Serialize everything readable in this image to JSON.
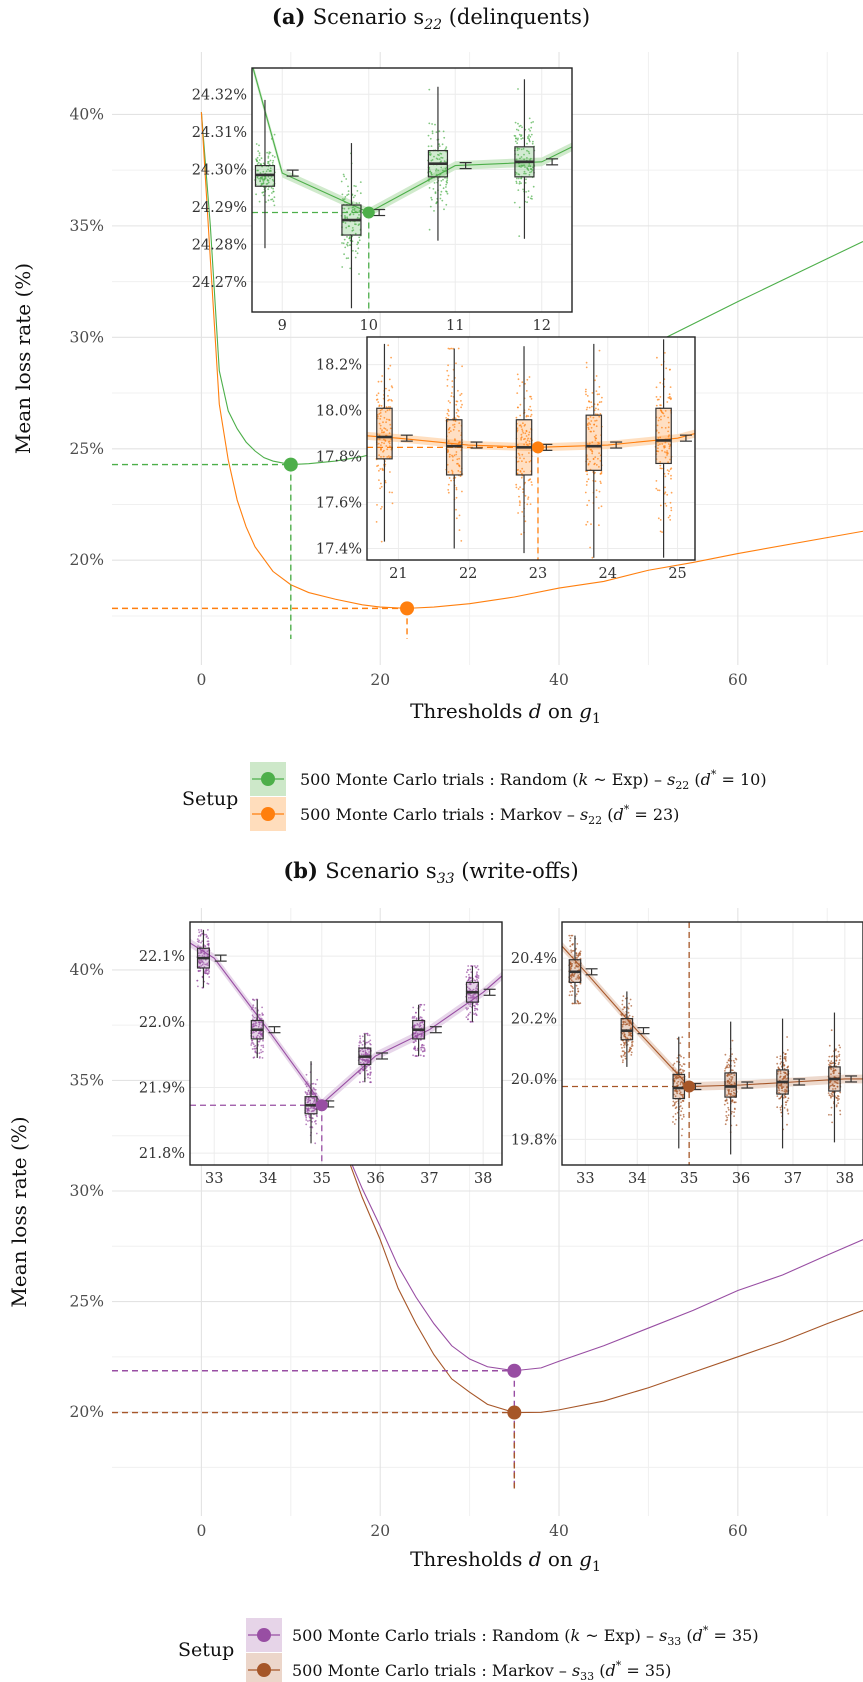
{
  "chart_data": [
    {
      "type": "line",
      "title_bold": "(a)",
      "title": "Scenario s",
      "title_sub": "22",
      "title_tail": " (delinquents)",
      "xlabel": "Thresholds d on g",
      "xlabel_sub": "1",
      "ylabel": "Mean loss rate (%)",
      "xlim": [
        -10,
        74
      ],
      "ylim": [
        15.3,
        42.8
      ],
      "x_ticks": [
        0,
        20,
        40,
        60
      ],
      "y_ticks": [
        20,
        25,
        30,
        35,
        40
      ],
      "y_tick_labels": [
        "20%",
        "25%",
        "30%",
        "35%",
        "40%"
      ],
      "grid": true,
      "series": [
        {
          "name": "500 Monte Carlo trials : Random (k ~ Exp) – s22 (d* = 10)",
          "color": "#4DAF4A",
          "band": "#c8e6c3",
          "x": [
            0,
            1,
            2,
            3,
            4,
            5,
            6,
            7,
            8,
            10,
            12,
            15,
            18,
            20,
            25,
            30,
            40,
            50,
            60,
            74
          ],
          "y": [
            40.1,
            35.0,
            28.5,
            26.7,
            25.9,
            25.3,
            24.9,
            24.6,
            24.45,
            24.29,
            24.33,
            24.45,
            24.65,
            24.85,
            25.3,
            26.0,
            27.5,
            29.6,
            31.6,
            34.3
          ],
          "optimum": {
            "x": 10,
            "y": 24.29
          }
        },
        {
          "name": "500 Monte Carlo trials : Markov – s22 (d* = 23)",
          "color": "#FF7F0E",
          "band": "#ffd9b5",
          "x": [
            0,
            1,
            2,
            3,
            4,
            5,
            6,
            8,
            10,
            12,
            15,
            18,
            20,
            23,
            26,
            30,
            35,
            40,
            45,
            50,
            55,
            60,
            74
          ],
          "y": [
            40.1,
            33.5,
            27.0,
            24.5,
            22.7,
            21.5,
            20.6,
            19.5,
            18.9,
            18.55,
            18.25,
            18.0,
            17.9,
            17.84,
            17.9,
            18.05,
            18.35,
            18.75,
            19.05,
            19.55,
            19.9,
            20.3,
            21.3
          ],
          "optimum": {
            "x": 23,
            "y": 17.84
          }
        }
      ],
      "insets": [
        {
          "series": 0,
          "xlim": [
            8.65,
            12.35
          ],
          "ylim": [
            24.262,
            24.327
          ],
          "x_ticks": [
            9,
            10,
            11,
            12
          ],
          "y_ticks": [
            24.27,
            24.28,
            24.29,
            24.3,
            24.31,
            24.32
          ],
          "y_tick_labels": [
            "24.27%",
            "24.28%",
            "24.29%",
            "24.30%",
            "24.31%",
            "24.32%"
          ],
          "mean_curve": {
            "x": [
              8.65,
              9,
              10,
              11,
              12,
              12.35
            ],
            "y": [
              24.328,
              24.299,
              24.2885,
              24.301,
              24.302,
              24.306
            ]
          },
          "boxes": [
            {
              "x": 9,
              "q1": 24.2955,
              "median": 24.2985,
              "q3": 24.301,
              "lo": 24.279,
              "hi": 24.3185,
              "mean": 24.299
            },
            {
              "x": 10,
              "q1": 24.2825,
              "median": 24.2865,
              "q3": 24.2905,
              "lo": 24.263,
              "hi": 24.307,
              "mean": 24.2885
            },
            {
              "x": 11,
              "q1": 24.298,
              "median": 24.3015,
              "q3": 24.305,
              "lo": 24.281,
              "hi": 24.322,
              "mean": 24.301
            },
            {
              "x": 12,
              "q1": 24.298,
              "median": 24.302,
              "q3": 24.306,
              "lo": 24.2815,
              "hi": 24.324,
              "mean": 24.302
            }
          ],
          "optimum": {
            "x": 10,
            "y": 24.2885
          }
        },
        {
          "series": 1,
          "xlim": [
            20.55,
            25.25
          ],
          "ylim": [
            17.35,
            18.32
          ],
          "x_ticks": [
            21,
            22,
            23,
            24,
            25
          ],
          "y_ticks": [
            17.4,
            17.6,
            17.8,
            18.0,
            18.2
          ],
          "y_tick_labels": [
            "17.4%",
            "17.6%",
            "17.8%",
            "18.0%",
            "18.2%"
          ],
          "mean_curve": {
            "x": [
              20.55,
              21,
              22,
              23,
              24,
              25,
              25.25
            ],
            "y": [
              17.89,
              17.88,
              17.85,
              17.84,
              17.85,
              17.88,
              17.9
            ]
          },
          "boxes": [
            {
              "x": 21,
              "q1": 17.79,
              "median": 17.885,
              "q3": 18.01,
              "lo": 17.43,
              "hi": 18.29,
              "mean": 17.88
            },
            {
              "x": 22,
              "q1": 17.72,
              "median": 17.845,
              "q3": 17.96,
              "lo": 17.4,
              "hi": 18.27,
              "mean": 17.85
            },
            {
              "x": 23,
              "q1": 17.72,
              "median": 17.84,
              "q3": 17.96,
              "lo": 17.38,
              "hi": 18.28,
              "mean": 17.84
            },
            {
              "x": 24,
              "q1": 17.74,
              "median": 17.845,
              "q3": 17.98,
              "lo": 17.36,
              "hi": 18.29,
              "mean": 17.85
            },
            {
              "x": 25,
              "q1": 17.77,
              "median": 17.87,
              "q3": 18.01,
              "lo": 17.36,
              "hi": 18.31,
              "mean": 17.88
            }
          ],
          "optimum": {
            "x": 23,
            "y": 17.84
          }
        }
      ],
      "legend": {
        "title": "Setup",
        "entries": [
          {
            "prefix": "500 Monte Carlo trials :  Random (",
            "k": "k",
            "mid": " ~ Exp) – ",
            "s": "s",
            "sub": "22",
            "d": "(",
            "dvar": "d",
            "sup": "*",
            "tail": " = 10)"
          },
          {
            "prefix": "500 Monte Carlo trials :  Markov – ",
            "k": "",
            "mid": "",
            "s": "s",
            "sub": "22",
            "d": "(",
            "dvar": "d",
            "sup": "*",
            "tail": " = 23)"
          }
        ]
      }
    },
    {
      "type": "line",
      "title_bold": "(b)",
      "title": "Scenario s",
      "title_sub": "33",
      "title_tail": " (write-offs)",
      "xlabel": "Thresholds d on g",
      "xlabel_sub": "1",
      "ylabel": "Mean loss rate (%)",
      "xlim": [
        -10,
        74
      ],
      "ylim": [
        15.3,
        42.8
      ],
      "x_ticks": [
        0,
        20,
        40,
        60
      ],
      "y_ticks": [
        20,
        25,
        30,
        35,
        40
      ],
      "y_tick_labels": [
        "20%",
        "25%",
        "30%",
        "35%",
        "40%"
      ],
      "grid": true,
      "series": [
        {
          "name": "500 Monte Carlo trials : Random (k ~ Exp) – s33 (d* = 35)",
          "color": "#984EA3",
          "band": "#e3cfe6",
          "x": [
            0,
            1,
            2,
            16,
            18,
            20,
            22,
            24,
            26,
            28,
            30,
            32,
            35,
            38,
            40,
            45,
            50,
            55,
            60,
            65,
            70,
            74
          ],
          "y": [
            40.0,
            37.5,
            36.0,
            32.0,
            30.1,
            28.4,
            26.6,
            25.2,
            24.0,
            23.0,
            22.4,
            22.05,
            21.87,
            22.0,
            22.3,
            23.0,
            23.8,
            24.6,
            25.5,
            26.2,
            27.1,
            27.8
          ],
          "optimum": {
            "x": 35,
            "y": 21.87
          }
        },
        {
          "name": "500 Monte Carlo trials : Markov – s33 (d* = 35)",
          "color": "#A65628",
          "band": "#ead2c4",
          "x": [
            0,
            1,
            2,
            16,
            18,
            20,
            22,
            24,
            26,
            28,
            30,
            32,
            35,
            38,
            40,
            45,
            50,
            55,
            60,
            65,
            70,
            74
          ],
          "y": [
            40.0,
            37.3,
            35.8,
            31.9,
            29.7,
            27.8,
            25.6,
            24.0,
            22.6,
            21.5,
            20.9,
            20.35,
            19.98,
            19.99,
            20.1,
            20.5,
            21.1,
            21.8,
            22.5,
            23.2,
            24.0,
            24.6
          ],
          "optimum": {
            "x": 35,
            "y": 19.98
          }
        }
      ],
      "insets": [
        {
          "series": 0,
          "xlim": [
            32.55,
            38.35
          ],
          "ylim": [
            21.782,
            22.152
          ],
          "x_ticks": [
            33,
            34,
            35,
            36,
            37,
            38
          ],
          "y_ticks": [
            21.8,
            21.9,
            22.0,
            22.1
          ],
          "y_tick_labels": [
            "21.8%",
            "21.9%",
            "22.0%",
            "22.1%"
          ],
          "mean_curve": {
            "x": [
              32.55,
              33,
              34,
              35,
              36,
              37,
              38,
              38.35
            ],
            "y": [
              22.12,
              22.097,
              21.988,
              21.875,
              21.948,
              21.988,
              22.045,
              22.07
            ]
          },
          "boxes": [
            {
              "x": 33,
              "q1": 22.082,
              "median": 22.097,
              "q3": 22.112,
              "lo": 22.052,
              "hi": 22.14,
              "mean": 22.097
            },
            {
              "x": 34,
              "q1": 21.974,
              "median": 21.988,
              "q3": 22.002,
              "lo": 21.945,
              "hi": 22.034,
              "mean": 21.988
            },
            {
              "x": 35,
              "q1": 21.86,
              "median": 21.873,
              "q3": 21.886,
              "lo": 21.815,
              "hi": 21.94,
              "mean": 21.875
            },
            {
              "x": 36,
              "q1": 21.935,
              "median": 21.947,
              "q3": 21.96,
              "lo": 21.908,
              "hi": 21.982,
              "mean": 21.948
            },
            {
              "x": 37,
              "q1": 21.974,
              "median": 21.988,
              "q3": 22.002,
              "lo": 21.948,
              "hi": 22.026,
              "mean": 21.988
            },
            {
              "x": 38,
              "q1": 22.03,
              "median": 22.045,
              "q3": 22.06,
              "lo": 22.0,
              "hi": 22.085,
              "mean": 22.045
            }
          ],
          "optimum": {
            "x": 35,
            "y": 21.873
          }
        },
        {
          "series": 1,
          "xlim": [
            32.55,
            38.35
          ],
          "ylim": [
            19.715,
            20.52
          ],
          "x_ticks": [
            33,
            34,
            35,
            36,
            37,
            38
          ],
          "y_ticks": [
            19.8,
            20.0,
            20.2,
            20.4
          ],
          "y_tick_labels": [
            "19.8%",
            "20.0%",
            "20.2%",
            "20.4%"
          ],
          "mean_curve": {
            "x": [
              32.55,
              33,
              34,
              35,
              36,
              37,
              38,
              38.35
            ],
            "y": [
              20.44,
              20.355,
              20.16,
              19.975,
              19.98,
              19.99,
              20.0,
              20.0
            ]
          },
          "boxes": [
            {
              "x": 33,
              "q1": 20.32,
              "median": 20.355,
              "q3": 20.395,
              "lo": 20.25,
              "hi": 20.475,
              "mean": 20.355
            },
            {
              "x": 34,
              "q1": 20.13,
              "median": 20.16,
              "q3": 20.2,
              "lo": 20.04,
              "hi": 20.29,
              "mean": 20.16
            },
            {
              "x": 35,
              "q1": 19.935,
              "median": 19.97,
              "q3": 20.015,
              "lo": 19.77,
              "hi": 20.14,
              "mean": 19.975
            },
            {
              "x": 36,
              "q1": 19.94,
              "median": 19.975,
              "q3": 20.02,
              "lo": 19.75,
              "hi": 20.19,
              "mean": 19.98
            },
            {
              "x": 37,
              "q1": 19.95,
              "median": 19.99,
              "q3": 20.03,
              "lo": 19.77,
              "hi": 20.2,
              "mean": 19.99
            },
            {
              "x": 38,
              "q1": 19.96,
              "median": 20.0,
              "q3": 20.04,
              "lo": 19.79,
              "hi": 20.22,
              "mean": 20.0
            }
          ],
          "optimum": {
            "x": 35,
            "y": 19.975
          }
        }
      ],
      "legend": {
        "title": "Setup",
        "entries": [
          {
            "prefix": "500 Monte Carlo trials :  Random (",
            "k": "k",
            "mid": " ~ Exp) – ",
            "s": "s",
            "sub": "33",
            "d": "(",
            "dvar": "d",
            "sup": "*",
            "tail": " = 35)"
          },
          {
            "prefix": "500 Monte Carlo trials :  Markov – ",
            "k": "",
            "mid": "",
            "s": "s",
            "sub": "33",
            "d": "(",
            "dvar": "d",
            "sup": "*",
            "tail": " = 35)"
          }
        ]
      }
    }
  ]
}
